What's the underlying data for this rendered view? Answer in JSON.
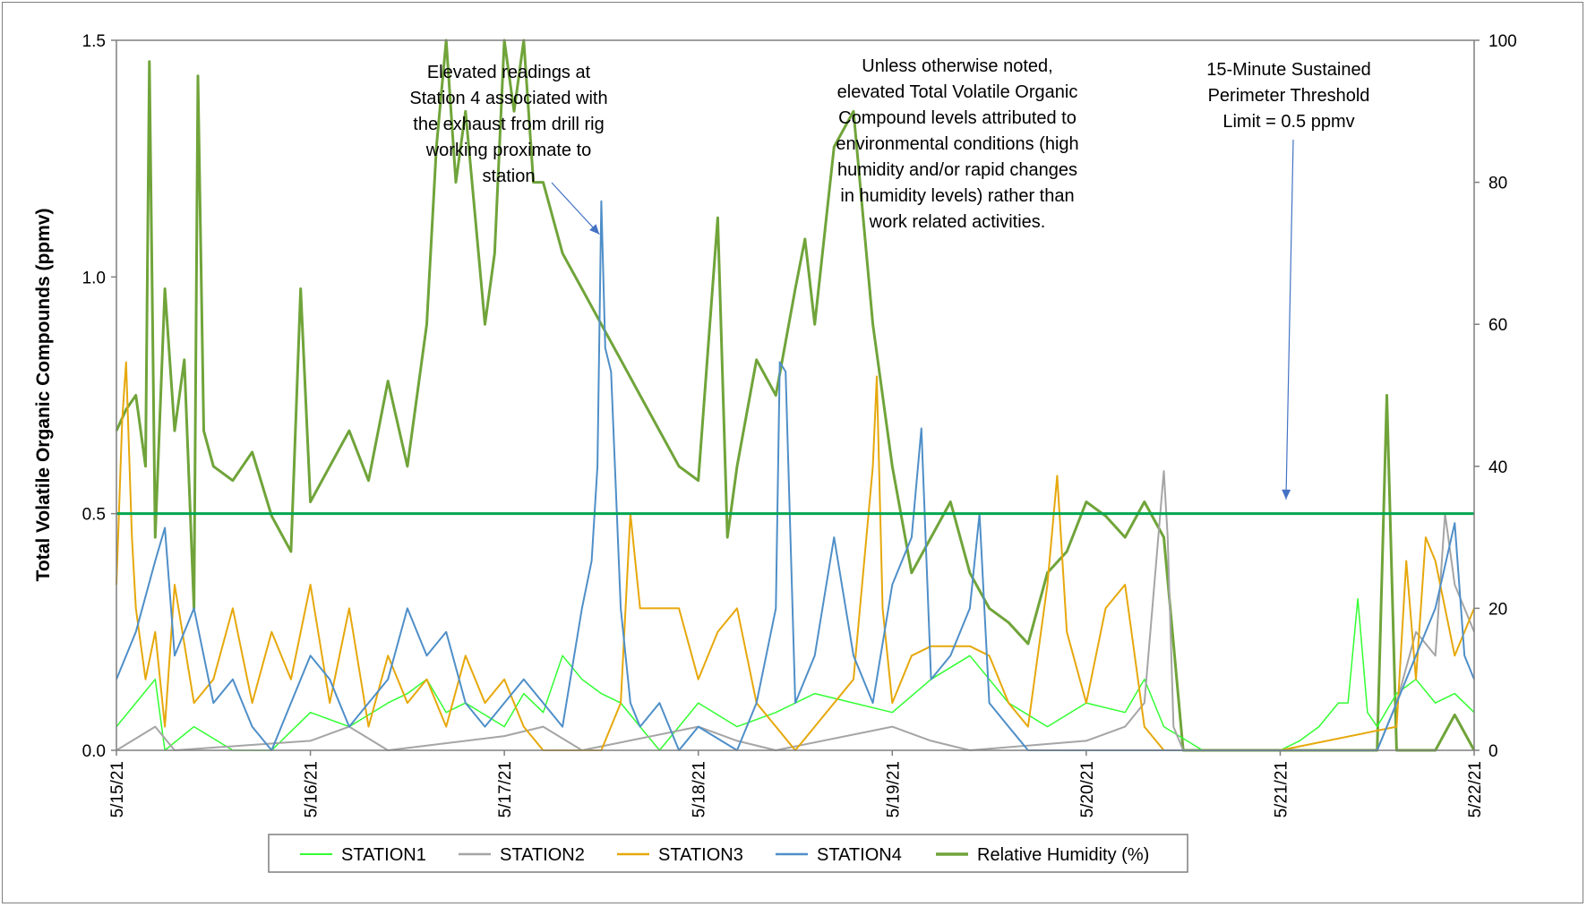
{
  "chart_data": {
    "type": "line",
    "title": "",
    "xlabel": "",
    "ylabel": "Total Volatile Organic Compounds  (ppmv)",
    "y2label": "",
    "x_ticks": [
      "5/15/21",
      "5/16/21",
      "5/17/21",
      "5/18/21",
      "5/19/21",
      "5/20/21",
      "5/21/21",
      "5/22/21"
    ],
    "xlim": [
      0,
      7
    ],
    "ylim": [
      0,
      1.5
    ],
    "y_ticks": [
      "0.0",
      "0.5",
      "1.0",
      "1.5"
    ],
    "y2lim": [
      0,
      100
    ],
    "y2_ticks": [
      "0",
      "20",
      "40",
      "60",
      "80",
      "100"
    ],
    "grid": false,
    "legend_placement": "bottom",
    "threshold": {
      "value": 0.5,
      "color": "#00A651"
    },
    "annotations": [
      {
        "id": "station4",
        "lines": [
          "Elevated readings at",
          "Station 4 associated with",
          "the exhaust from drill rig",
          "working proximate to",
          "station"
        ],
        "arrow_to": {
          "x": 2.49,
          "y": 1.09
        }
      },
      {
        "id": "note",
        "lines": [
          "Unless otherwise noted,",
          "elevated Total Volatile Organic",
          "Compound levels attributed to",
          "environmental conditions (high",
          "humidity and/or rapid changes",
          "in humidity levels) rather than",
          "work related activities."
        ]
      },
      {
        "id": "threshold",
        "lines": [
          "15-Minute Sustained",
          "Perimeter Threshold",
          "Limit = 0.5 ppmv"
        ],
        "arrow_to": {
          "x": 6.03,
          "y": 0.53
        }
      }
    ],
    "series": [
      {
        "name": "STATION1",
        "color": "#33FF33",
        "axis": "left",
        "width": 1.5,
        "points": [
          [
            0.0,
            0.05
          ],
          [
            0.1,
            0.1
          ],
          [
            0.2,
            0.15
          ],
          [
            0.25,
            0.0
          ],
          [
            0.4,
            0.05
          ],
          [
            0.6,
            0.0
          ],
          [
            0.8,
            0.0
          ],
          [
            1.0,
            0.08
          ],
          [
            1.2,
            0.05
          ],
          [
            1.4,
            0.1
          ],
          [
            1.5,
            0.12
          ],
          [
            1.6,
            0.15
          ],
          [
            1.7,
            0.08
          ],
          [
            1.8,
            0.1
          ],
          [
            2.0,
            0.05
          ],
          [
            2.1,
            0.12
          ],
          [
            2.2,
            0.08
          ],
          [
            2.3,
            0.2
          ],
          [
            2.4,
            0.15
          ],
          [
            2.5,
            0.12
          ],
          [
            2.6,
            0.1
          ],
          [
            2.7,
            0.05
          ],
          [
            2.8,
            0.0
          ],
          [
            2.9,
            0.05
          ],
          [
            3.0,
            0.1
          ],
          [
            3.2,
            0.05
          ],
          [
            3.4,
            0.08
          ],
          [
            3.6,
            0.12
          ],
          [
            3.8,
            0.1
          ],
          [
            4.0,
            0.08
          ],
          [
            4.2,
            0.15
          ],
          [
            4.4,
            0.2
          ],
          [
            4.5,
            0.15
          ],
          [
            4.6,
            0.1
          ],
          [
            4.8,
            0.05
          ],
          [
            5.0,
            0.1
          ],
          [
            5.2,
            0.08
          ],
          [
            5.3,
            0.15
          ],
          [
            5.4,
            0.05
          ],
          [
            5.6,
            0.0
          ],
          [
            5.8,
            0.0
          ],
          [
            6.0,
            0.0
          ],
          [
            6.1,
            0.02
          ],
          [
            6.2,
            0.05
          ],
          [
            6.3,
            0.1
          ],
          [
            6.35,
            0.1
          ],
          [
            6.4,
            0.32
          ],
          [
            6.45,
            0.08
          ],
          [
            6.5,
            0.05
          ],
          [
            6.6,
            0.12
          ],
          [
            6.7,
            0.15
          ],
          [
            6.8,
            0.1
          ],
          [
            6.9,
            0.12
          ],
          [
            7.0,
            0.08
          ]
        ]
      },
      {
        "name": "STATION2",
        "color": "#A5A5A5",
        "axis": "left",
        "width": 2,
        "points": [
          [
            0.0,
            0.0
          ],
          [
            0.2,
            0.05
          ],
          [
            0.3,
            0.0
          ],
          [
            1.0,
            0.02
          ],
          [
            1.2,
            0.05
          ],
          [
            1.4,
            0.0
          ],
          [
            2.0,
            0.03
          ],
          [
            2.2,
            0.05
          ],
          [
            2.4,
            0.0
          ],
          [
            3.0,
            0.05
          ],
          [
            3.2,
            0.02
          ],
          [
            3.4,
            0.0
          ],
          [
            4.0,
            0.05
          ],
          [
            4.2,
            0.02
          ],
          [
            4.4,
            0.0
          ],
          [
            5.0,
            0.02
          ],
          [
            5.2,
            0.05
          ],
          [
            5.3,
            0.1
          ],
          [
            5.4,
            0.59
          ],
          [
            5.42,
            0.45
          ],
          [
            5.45,
            0.05
          ],
          [
            5.5,
            0.0
          ],
          [
            6.0,
            0.0
          ],
          [
            6.5,
            0.0
          ],
          [
            6.6,
            0.1
          ],
          [
            6.7,
            0.25
          ],
          [
            6.8,
            0.2
          ],
          [
            6.85,
            0.5
          ],
          [
            6.9,
            0.35
          ],
          [
            6.95,
            0.3
          ],
          [
            7.0,
            0.25
          ]
        ]
      },
      {
        "name": "STATION3",
        "color": "#E6A80C",
        "axis": "left",
        "width": 2,
        "points": [
          [
            0.0,
            0.35
          ],
          [
            0.03,
            0.7
          ],
          [
            0.05,
            0.82
          ],
          [
            0.08,
            0.45
          ],
          [
            0.1,
            0.3
          ],
          [
            0.15,
            0.15
          ],
          [
            0.2,
            0.25
          ],
          [
            0.25,
            0.05
          ],
          [
            0.3,
            0.35
          ],
          [
            0.4,
            0.1
          ],
          [
            0.5,
            0.15
          ],
          [
            0.6,
            0.3
          ],
          [
            0.7,
            0.1
          ],
          [
            0.8,
            0.25
          ],
          [
            0.9,
            0.15
          ],
          [
            1.0,
            0.35
          ],
          [
            1.1,
            0.1
          ],
          [
            1.2,
            0.3
          ],
          [
            1.3,
            0.05
          ],
          [
            1.4,
            0.2
          ],
          [
            1.5,
            0.1
          ],
          [
            1.6,
            0.15
          ],
          [
            1.7,
            0.05
          ],
          [
            1.8,
            0.2
          ],
          [
            1.9,
            0.1
          ],
          [
            2.0,
            0.15
          ],
          [
            2.1,
            0.05
          ],
          [
            2.2,
            0.0
          ],
          [
            2.3,
            0.0
          ],
          [
            2.4,
            0.0
          ],
          [
            2.5,
            0.0
          ],
          [
            2.6,
            0.1
          ],
          [
            2.65,
            0.5
          ],
          [
            2.7,
            0.3
          ],
          [
            2.9,
            0.3
          ],
          [
            3.0,
            0.15
          ],
          [
            3.1,
            0.25
          ],
          [
            3.2,
            0.3
          ],
          [
            3.3,
            0.1
          ],
          [
            3.5,
            0.0
          ],
          [
            3.6,
            0.05
          ],
          [
            3.8,
            0.15
          ],
          [
            3.9,
            0.6
          ],
          [
            3.92,
            0.79
          ],
          [
            3.95,
            0.3
          ],
          [
            4.0,
            0.1
          ],
          [
            4.1,
            0.2
          ],
          [
            4.2,
            0.22
          ],
          [
            4.4,
            0.22
          ],
          [
            4.5,
            0.2
          ],
          [
            4.6,
            0.1
          ],
          [
            4.7,
            0.05
          ],
          [
            4.8,
            0.35
          ],
          [
            4.85,
            0.58
          ],
          [
            4.9,
            0.25
          ],
          [
            5.0,
            0.1
          ],
          [
            5.1,
            0.3
          ],
          [
            5.2,
            0.35
          ],
          [
            5.3,
            0.05
          ],
          [
            5.4,
            0.0
          ],
          [
            6.0,
            0.0
          ],
          [
            6.6,
            0.05
          ],
          [
            6.65,
            0.4
          ],
          [
            6.7,
            0.15
          ],
          [
            6.75,
            0.45
          ],
          [
            6.8,
            0.4
          ],
          [
            6.9,
            0.2
          ],
          [
            7.0,
            0.3
          ]
        ]
      },
      {
        "name": "STATION4",
        "color": "#4F8FC8",
        "axis": "left",
        "width": 2,
        "points": [
          [
            0.0,
            0.15
          ],
          [
            0.1,
            0.25
          ],
          [
            0.2,
            0.4
          ],
          [
            0.25,
            0.47
          ],
          [
            0.3,
            0.2
          ],
          [
            0.4,
            0.3
          ],
          [
            0.5,
            0.1
          ],
          [
            0.6,
            0.15
          ],
          [
            0.7,
            0.05
          ],
          [
            0.8,
            0.0
          ],
          [
            0.9,
            0.1
          ],
          [
            1.0,
            0.2
          ],
          [
            1.1,
            0.15
          ],
          [
            1.2,
            0.05
          ],
          [
            1.3,
            0.1
          ],
          [
            1.4,
            0.15
          ],
          [
            1.5,
            0.3
          ],
          [
            1.6,
            0.2
          ],
          [
            1.7,
            0.25
          ],
          [
            1.8,
            0.1
          ],
          [
            1.9,
            0.05
          ],
          [
            2.0,
            0.1
          ],
          [
            2.1,
            0.15
          ],
          [
            2.2,
            0.1
          ],
          [
            2.3,
            0.05
          ],
          [
            2.4,
            0.3
          ],
          [
            2.45,
            0.4
          ],
          [
            2.48,
            0.6
          ],
          [
            2.5,
            1.16
          ],
          [
            2.52,
            0.85
          ],
          [
            2.55,
            0.8
          ],
          [
            2.6,
            0.3
          ],
          [
            2.65,
            0.1
          ],
          [
            2.7,
            0.05
          ],
          [
            2.8,
            0.1
          ],
          [
            2.9,
            0.0
          ],
          [
            3.0,
            0.05
          ],
          [
            3.2,
            0.0
          ],
          [
            3.3,
            0.1
          ],
          [
            3.4,
            0.3
          ],
          [
            3.42,
            0.82
          ],
          [
            3.45,
            0.8
          ],
          [
            3.5,
            0.1
          ],
          [
            3.6,
            0.2
          ],
          [
            3.7,
            0.45
          ],
          [
            3.8,
            0.2
          ],
          [
            3.9,
            0.1
          ],
          [
            4.0,
            0.35
          ],
          [
            4.1,
            0.45
          ],
          [
            4.15,
            0.68
          ],
          [
            4.2,
            0.15
          ],
          [
            4.3,
            0.2
          ],
          [
            4.4,
            0.3
          ],
          [
            4.45,
            0.5
          ],
          [
            4.5,
            0.1
          ],
          [
            4.6,
            0.05
          ],
          [
            4.7,
            0.0
          ],
          [
            5.0,
            0.0
          ],
          [
            5.2,
            0.0
          ],
          [
            5.4,
            0.0
          ],
          [
            6.0,
            0.0
          ],
          [
            6.5,
            0.0
          ],
          [
            6.6,
            0.1
          ],
          [
            6.7,
            0.2
          ],
          [
            6.8,
            0.3
          ],
          [
            6.9,
            0.48
          ],
          [
            6.95,
            0.2
          ],
          [
            7.0,
            0.15
          ]
        ]
      },
      {
        "name": "Relative Humidity (%)",
        "color": "#70A43A",
        "axis": "right",
        "width": 3,
        "points": [
          [
            0.0,
            45
          ],
          [
            0.05,
            48
          ],
          [
            0.1,
            50
          ],
          [
            0.15,
            40
          ],
          [
            0.17,
            97
          ],
          [
            0.2,
            30
          ],
          [
            0.25,
            65
          ],
          [
            0.3,
            45
          ],
          [
            0.35,
            55
          ],
          [
            0.4,
            20
          ],
          [
            0.42,
            95
          ],
          [
            0.45,
            45
          ],
          [
            0.5,
            40
          ],
          [
            0.6,
            38
          ],
          [
            0.7,
            42
          ],
          [
            0.8,
            33
          ],
          [
            0.9,
            28
          ],
          [
            0.95,
            65
          ],
          [
            1.0,
            35
          ],
          [
            1.1,
            40
          ],
          [
            1.2,
            45
          ],
          [
            1.3,
            38
          ],
          [
            1.4,
            52
          ],
          [
            1.5,
            40
          ],
          [
            1.6,
            60
          ],
          [
            1.65,
            85
          ],
          [
            1.7,
            100
          ],
          [
            1.75,
            80
          ],
          [
            1.8,
            90
          ],
          [
            1.85,
            75
          ],
          [
            1.9,
            60
          ],
          [
            1.95,
            70
          ],
          [
            2.0,
            100
          ],
          [
            2.05,
            90
          ],
          [
            2.1,
            100
          ],
          [
            2.15,
            80
          ],
          [
            2.2,
            80
          ],
          [
            2.3,
            70
          ],
          [
            2.4,
            65
          ],
          [
            2.5,
            60
          ],
          [
            2.6,
            55
          ],
          [
            2.7,
            50
          ],
          [
            2.8,
            45
          ],
          [
            2.9,
            40
          ],
          [
            3.0,
            38
          ],
          [
            3.1,
            75
          ],
          [
            3.15,
            30
          ],
          [
            3.2,
            40
          ],
          [
            3.3,
            55
          ],
          [
            3.4,
            50
          ],
          [
            3.5,
            65
          ],
          [
            3.55,
            72
          ],
          [
            3.6,
            60
          ],
          [
            3.7,
            85
          ],
          [
            3.8,
            90
          ],
          [
            3.9,
            60
          ],
          [
            4.0,
            40
          ],
          [
            4.1,
            25
          ],
          [
            4.2,
            30
          ],
          [
            4.3,
            35
          ],
          [
            4.4,
            25
          ],
          [
            4.5,
            20
          ],
          [
            4.6,
            18
          ],
          [
            4.7,
            15
          ],
          [
            4.8,
            25
          ],
          [
            4.9,
            28
          ],
          [
            5.0,
            35
          ],
          [
            5.1,
            33
          ],
          [
            5.2,
            30
          ],
          [
            5.3,
            35
          ],
          [
            5.4,
            30
          ],
          [
            5.5,
            0
          ],
          [
            6.0,
            0
          ],
          [
            6.5,
            0
          ],
          [
            6.55,
            50
          ],
          [
            6.6,
            0
          ],
          [
            6.8,
            0
          ],
          [
            6.9,
            5
          ],
          [
            7.0,
            0
          ]
        ]
      }
    ]
  }
}
